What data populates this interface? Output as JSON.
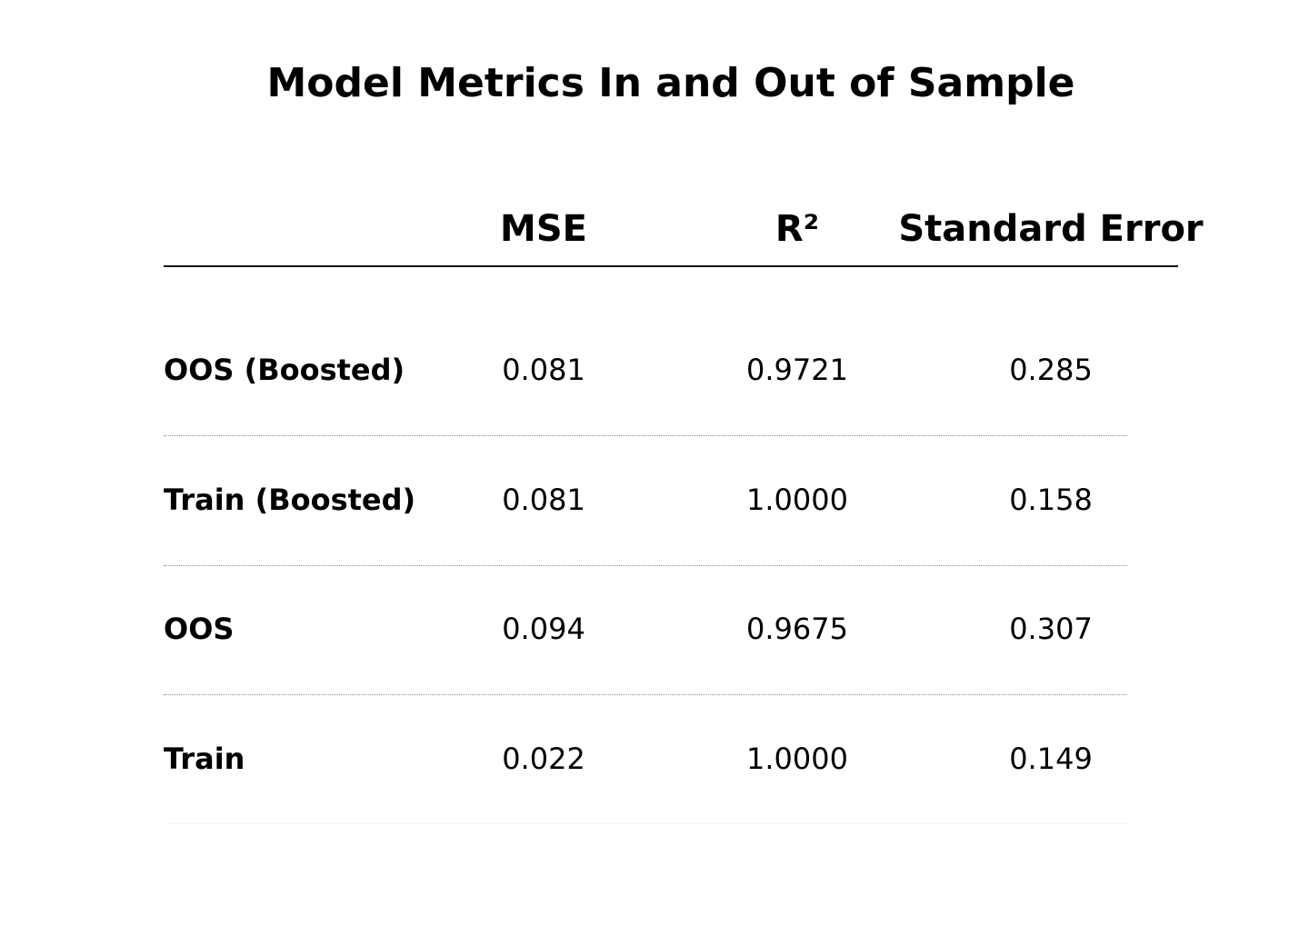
{
  "chart_data": {
    "type": "table",
    "title": "Model Metrics In and Out of Sample",
    "columns": [
      "MSE",
      "R²",
      "Standard Error"
    ],
    "rows": [
      {
        "label": "OOS (Boosted)",
        "values": [
          "0.081",
          "0.9721",
          "0.285"
        ]
      },
      {
        "label": "Train (Boosted)",
        "values": [
          "0.081",
          "1.0000",
          "0.158"
        ]
      },
      {
        "label": "OOS",
        "values": [
          "0.094",
          "0.9675",
          "0.307"
        ]
      },
      {
        "label": "Train",
        "values": [
          "0.022",
          "1.0000",
          "0.149"
        ]
      }
    ],
    "grid": false
  }
}
